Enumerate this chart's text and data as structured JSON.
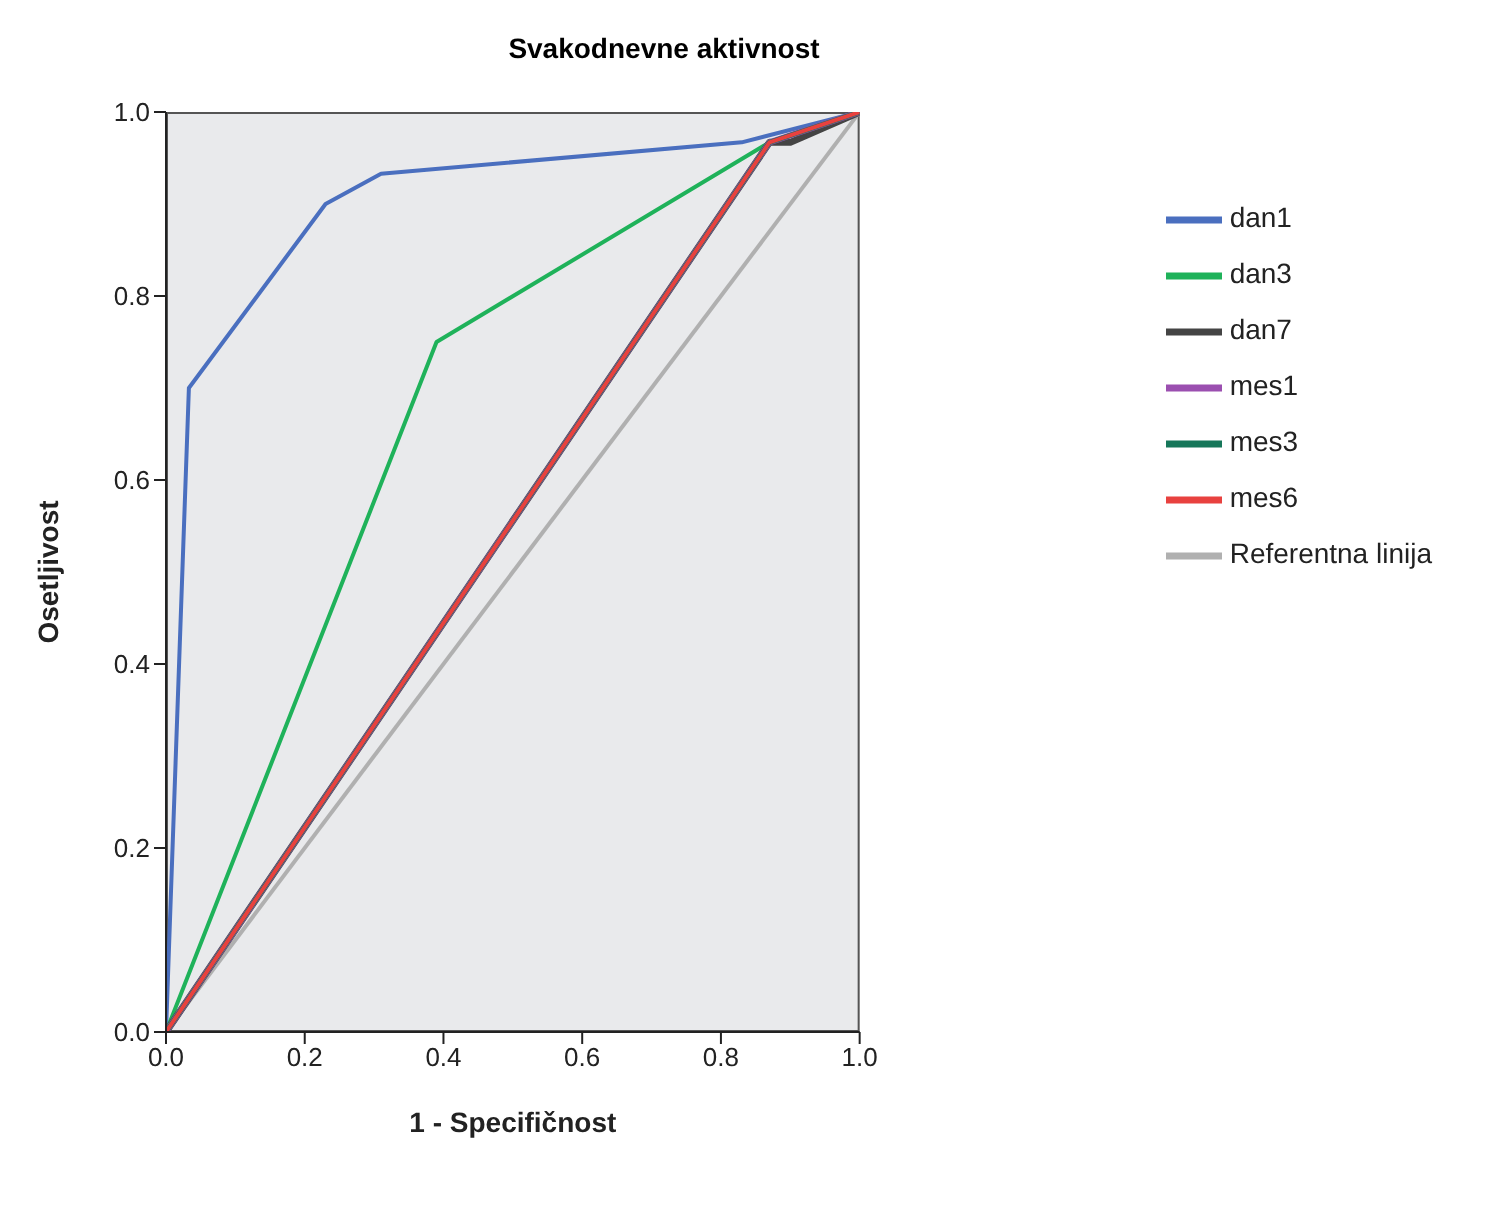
{
  "chart_data": {
    "type": "line",
    "title": "Svakodnevne aktivnost",
    "xlabel": "1 - Specifičnost",
    "ylabel": "Osetljivost",
    "xlim": [
      0,
      1
    ],
    "ylim": [
      0,
      1
    ],
    "xticks": [
      {
        "value": 0,
        "label": "0.0"
      },
      {
        "value": 0.2,
        "label": "0.2"
      },
      {
        "value": 0.4,
        "label": "0.4"
      },
      {
        "value": 0.6,
        "label": "0.6"
      },
      {
        "value": 0.8,
        "label": "0.8"
      },
      {
        "value": 1,
        "label": "1.0"
      }
    ],
    "yticks": [
      {
        "value": 0,
        "label": "0.0"
      },
      {
        "value": 0.2,
        "label": "0.2"
      },
      {
        "value": 0.4,
        "label": "0.4"
      },
      {
        "value": 0.6,
        "label": "0.6"
      },
      {
        "value": 0.8,
        "label": "0.8"
      },
      {
        "value": 1,
        "label": "1.0"
      }
    ],
    "grid": false,
    "legend": "right",
    "marker": "none",
    "line_style": "solid",
    "series": [
      {
        "name": "dan1",
        "color": "#4a6fbf",
        "x": [
          0,
          0.033,
          0.23,
          0.31,
          0.83,
          1
        ],
        "values": [
          0,
          0.7,
          0.9,
          0.933,
          0.967,
          1
        ]
      },
      {
        "name": "dan3",
        "color": "#1fb25a",
        "x": [
          0,
          0.39,
          0.87,
          1
        ],
        "values": [
          0,
          0.75,
          0.967,
          1
        ]
      },
      {
        "name": "dan7",
        "color": "#444444",
        "x": [
          0,
          0.87,
          0.9,
          1
        ],
        "values": [
          0,
          0.967,
          0.967,
          1
        ]
      },
      {
        "name": "mes1",
        "color": "#9b4fb0",
        "x": [
          0,
          0.87,
          1
        ],
        "values": [
          0,
          0.967,
          1
        ]
      },
      {
        "name": "mes3",
        "color": "#16775a",
        "x": [
          0,
          0.87,
          1
        ],
        "values": [
          0,
          0.967,
          1
        ]
      },
      {
        "name": "mes6",
        "color": "#e8413f",
        "x": [
          0,
          0.87,
          1
        ],
        "values": [
          0,
          0.967,
          1
        ]
      },
      {
        "name": "Referentna linija",
        "color": "#b0b0b0",
        "x": [
          0,
          1
        ],
        "values": [
          0,
          1
        ]
      }
    ]
  }
}
